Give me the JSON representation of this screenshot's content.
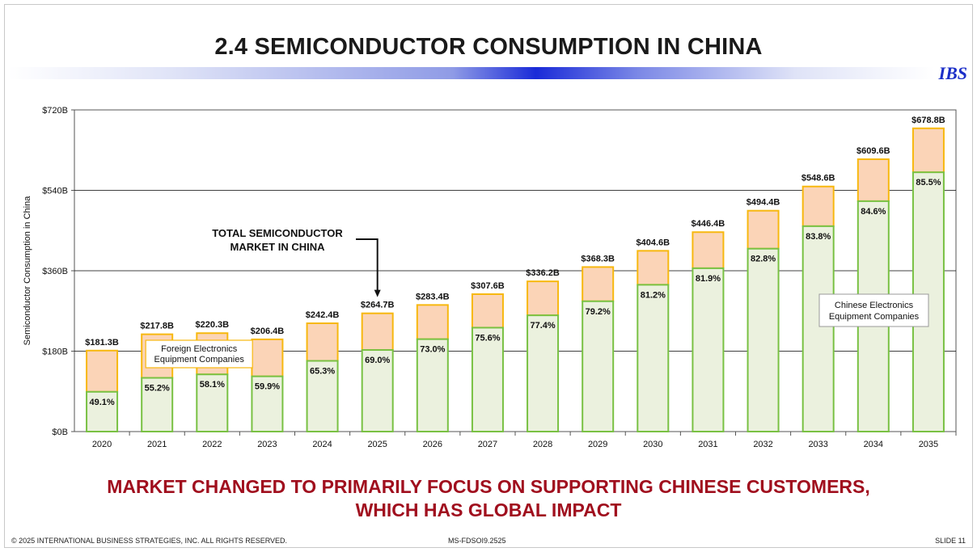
{
  "slide": {
    "title": "2.4  SEMICONDUCTOR CONSUMPTION IN CHINA",
    "logo": "IBS",
    "headline_line1": "MARKET CHANGED TO PRIMARILY FOCUS ON SUPPORTING CHINESE CUSTOMERS,",
    "headline_line2": "WHICH HAS GLOBAL IMPACT",
    "footer_copyright": "© 2025 INTERNATIONAL BUSINESS STRATEGIES, INC. ALL RIGHTS RESERVED.",
    "footer_doc_id": "MS-FDSOI9.2525",
    "footer_slide": "SLIDE 11"
  },
  "colors": {
    "chinese_fill": "#ebf1de",
    "chinese_border": "#79c143",
    "foreign_fill": "#fbd4b7",
    "foreign_border": "#f7b80f",
    "headline": "#a00f1e",
    "logo": "#1c2fc8"
  },
  "chart_data": {
    "type": "bar",
    "stacked": true,
    "categories": [
      "2020",
      "2021",
      "2022",
      "2023",
      "2024",
      "2025",
      "2026",
      "2027",
      "2028",
      "2029",
      "2030",
      "2031",
      "2032",
      "2033",
      "2034",
      "2035"
    ],
    "totals": [
      181.3,
      217.8,
      220.3,
      206.4,
      242.4,
      264.7,
      283.4,
      307.6,
      336.2,
      368.3,
      404.6,
      446.4,
      494.4,
      548.6,
      609.6,
      678.8
    ],
    "total_labels": [
      "$181.3B",
      "$217.8B",
      "$220.3B",
      "$206.4B",
      "$242.4B",
      "$264.7B",
      "$283.4B",
      "$307.6B",
      "$336.2B",
      "$368.3B",
      "$404.6B",
      "$446.4B",
      "$494.4B",
      "$548.6B",
      "$609.6B",
      "$678.8B"
    ],
    "chinese_share_pct": [
      49.1,
      55.2,
      58.1,
      59.9,
      65.3,
      69.0,
      73.0,
      75.6,
      77.4,
      79.2,
      81.2,
      81.9,
      82.8,
      83.8,
      84.6,
      85.5
    ],
    "share_labels": [
      "49.1%",
      "55.2%",
      "58.1%",
      "59.9%",
      "65.3%",
      "69.0%",
      "73.0%",
      "75.6%",
      "77.4%",
      "79.2%",
      "81.2%",
      "81.9%",
      "82.8%",
      "83.8%",
      "84.6%",
      "85.5%"
    ],
    "series": [
      {
        "name": "Chinese Electronics Equipment Companies",
        "label_lines": [
          "Chinese Electronics",
          "Equipment  Companies"
        ]
      },
      {
        "name": "Foreign Electronics Equipment Companies",
        "label_lines": [
          "Foreign Electronics",
          "Equipment Companies"
        ]
      }
    ],
    "ylabel": "Semiconductor Consumption in China",
    "ylim": [
      0,
      720
    ],
    "yticks": [
      0,
      180,
      360,
      540,
      720
    ],
    "ytick_labels": [
      "$0B",
      "$180B",
      "$360B",
      "$540B",
      "$720B"
    ],
    "grid": true,
    "annotation": {
      "lines": [
        "TOTAL SEMICONDUCTOR",
        "MARKET IN CHINA"
      ],
      "points_to": "2025"
    }
  }
}
